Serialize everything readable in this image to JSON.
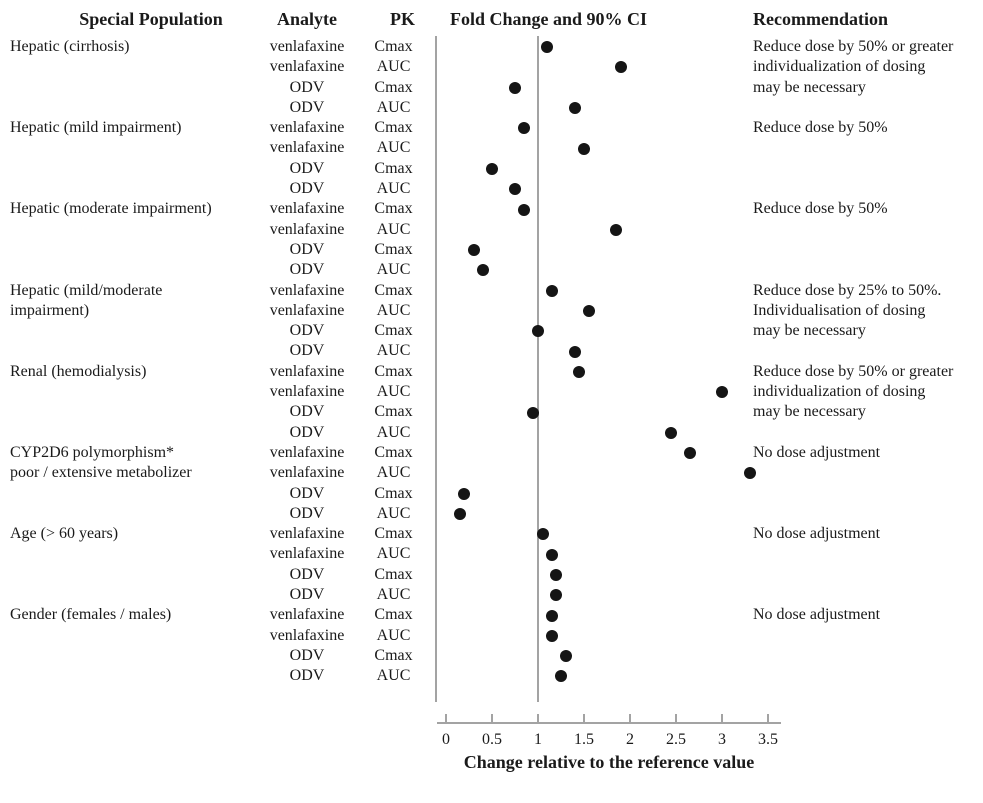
{
  "colors": {
    "dot": "#151515",
    "line": "#a3a3a3",
    "text": "#1a1a1a"
  },
  "headers": {
    "population": "Special Population",
    "analyte": "Analyte",
    "pk": "PK",
    "plot": "Fold Change and 90% CI",
    "recommendation": "Recommendation"
  },
  "axis": {
    "min": 0,
    "max": 3.5,
    "ticks": [
      0,
      0.5,
      1,
      1.5,
      2,
      2.5,
      3,
      3.5
    ],
    "tick_labels": [
      "0",
      "0.5",
      "1",
      "1.5",
      "2",
      "2.5",
      "3",
      "3.5"
    ],
    "title": "Change relative to the reference value"
  },
  "chart_data": {
    "type": "scatter",
    "title": "Fold Change and 90% CI",
    "xlabel": "Change relative to the reference value",
    "xlim": [
      0,
      3.5
    ],
    "reference_line": 1,
    "grid": false,
    "groups": [
      {
        "population": [
          "Hepatic (cirrhosis)"
        ],
        "recommendation": [
          "Reduce dose by 50% or greater",
          "individualization of dosing",
          "may be necessary"
        ],
        "rows": [
          {
            "analyte": "venlafaxine",
            "pk": "Cmax",
            "value": 1.1
          },
          {
            "analyte": "venlafaxine",
            "pk": "AUC",
            "value": 1.9
          },
          {
            "analyte": "ODV",
            "pk": "Cmax",
            "value": 0.75
          },
          {
            "analyte": "ODV",
            "pk": "AUC",
            "value": 1.4
          }
        ]
      },
      {
        "population": [
          "Hepatic (mild impairment)"
        ],
        "recommendation": [
          "Reduce dose by 50%"
        ],
        "rows": [
          {
            "analyte": "venlafaxine",
            "pk": "Cmax",
            "value": 0.85
          },
          {
            "analyte": "venlafaxine",
            "pk": "AUC",
            "value": 1.5
          },
          {
            "analyte": "ODV",
            "pk": "Cmax",
            "value": 0.5
          },
          {
            "analyte": "ODV",
            "pk": "AUC",
            "value": 0.75
          }
        ]
      },
      {
        "population": [
          "Hepatic (moderate impairment)"
        ],
        "recommendation": [
          "Reduce dose by 50%"
        ],
        "rows": [
          {
            "analyte": "venlafaxine",
            "pk": "Cmax",
            "value": 0.85
          },
          {
            "analyte": "venlafaxine",
            "pk": "AUC",
            "value": 1.85
          },
          {
            "analyte": "ODV",
            "pk": "Cmax",
            "value": 0.3
          },
          {
            "analyte": "ODV",
            "pk": "AUC",
            "value": 0.4
          }
        ]
      },
      {
        "population": [
          "Hepatic (mild/moderate",
          "impairment)"
        ],
        "recommendation": [
          "Reduce dose by 25% to 50%.",
          "Individualisation of dosing",
          "may be necessary"
        ],
        "rows": [
          {
            "analyte": "venlafaxine",
            "pk": "Cmax",
            "value": 1.15
          },
          {
            "analyte": "venlafaxine",
            "pk": "AUC",
            "value": 1.55
          },
          {
            "analyte": "ODV",
            "pk": "Cmax",
            "value": 1.0
          },
          {
            "analyte": "ODV",
            "pk": "AUC",
            "value": 1.4
          }
        ]
      },
      {
        "population": [
          "Renal (hemodialysis)"
        ],
        "recommendation": [
          "Reduce dose by 50% or greater",
          "individualization of dosing",
          "may be necessary"
        ],
        "rows": [
          {
            "analyte": "venlafaxine",
            "pk": "Cmax",
            "value": 1.45
          },
          {
            "analyte": "venlafaxine",
            "pk": "AUC",
            "value": 3.0
          },
          {
            "analyte": "ODV",
            "pk": "Cmax",
            "value": 0.95
          },
          {
            "analyte": "ODV",
            "pk": "AUC",
            "value": 2.45
          }
        ]
      },
      {
        "population": [
          "CYP2D6 polymorphism*",
          "poor / extensive metabolizer"
        ],
        "recommendation": [
          "No dose adjustment"
        ],
        "rows": [
          {
            "analyte": "venlafaxine",
            "pk": "Cmax",
            "value": 2.65
          },
          {
            "analyte": "venlafaxine",
            "pk": "AUC",
            "value": 3.3
          },
          {
            "analyte": "ODV",
            "pk": "Cmax",
            "value": 0.2
          },
          {
            "analyte": "ODV",
            "pk": "AUC",
            "value": 0.15
          }
        ]
      },
      {
        "population": [
          "Age (> 60 years)"
        ],
        "recommendation": [
          "No dose adjustment"
        ],
        "rows": [
          {
            "analyte": "venlafaxine",
            "pk": "Cmax",
            "value": 1.05
          },
          {
            "analyte": "venlafaxine",
            "pk": "AUC",
            "value": 1.15
          },
          {
            "analyte": "ODV",
            "pk": "Cmax",
            "value": 1.2
          },
          {
            "analyte": "ODV",
            "pk": "AUC",
            "value": 1.2
          }
        ]
      },
      {
        "population": [
          "Gender (females / males)"
        ],
        "recommendation": [
          "No dose adjustment"
        ],
        "rows": [
          {
            "analyte": "venlafaxine",
            "pk": "Cmax",
            "value": 1.15
          },
          {
            "analyte": "venlafaxine",
            "pk": "AUC",
            "value": 1.15
          },
          {
            "analyte": "ODV",
            "pk": "Cmax",
            "value": 1.3
          },
          {
            "analyte": "ODV",
            "pk": "AUC",
            "value": 1.25
          }
        ]
      }
    ]
  }
}
